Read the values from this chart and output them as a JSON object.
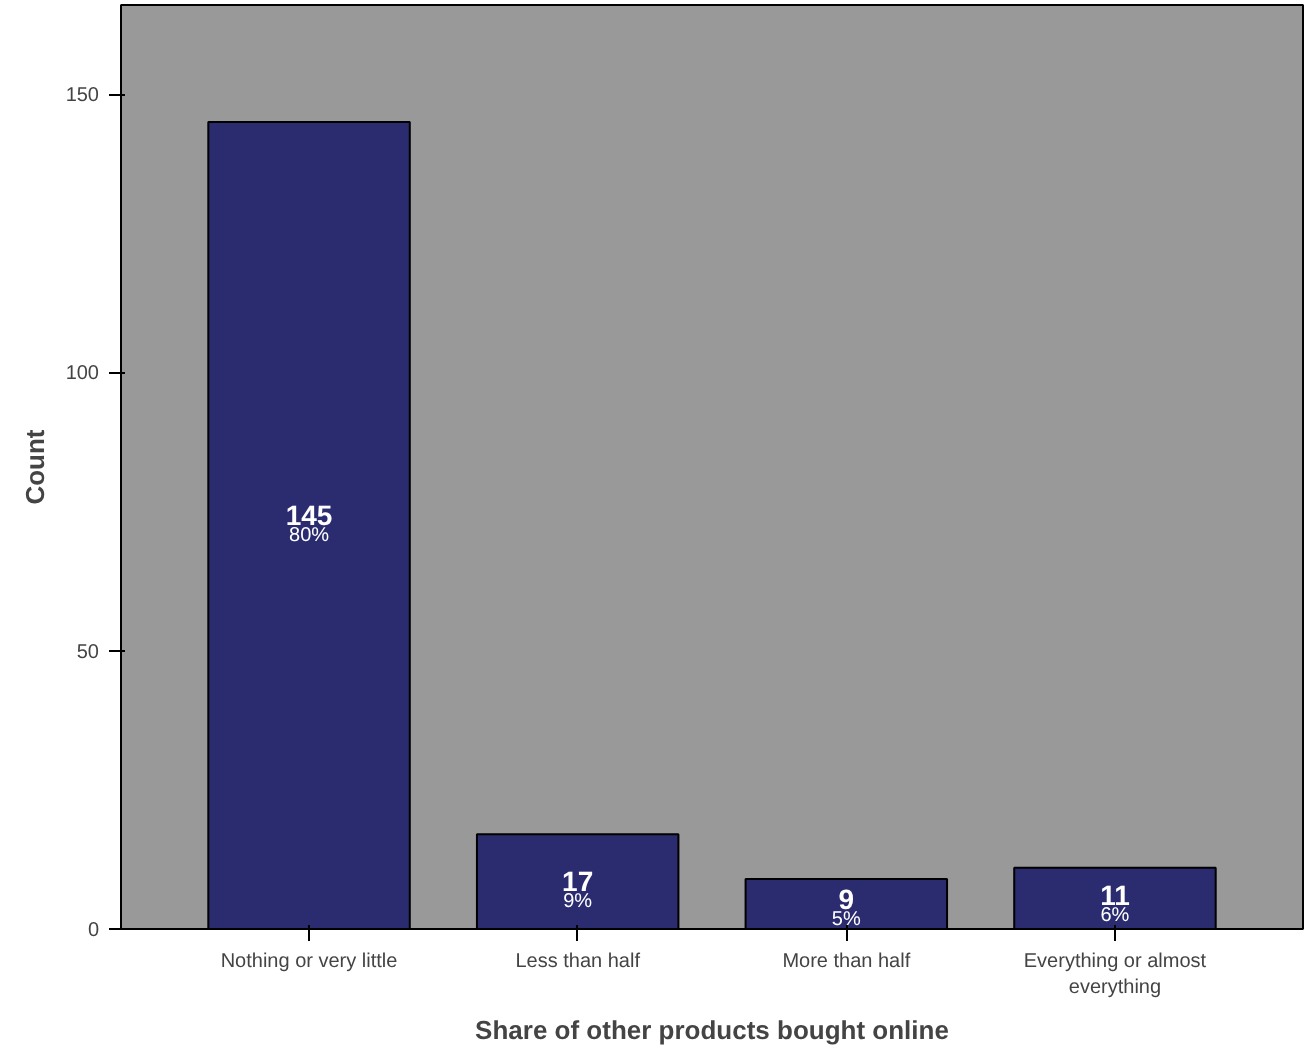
{
  "chart_data": {
    "type": "bar",
    "xlabel": "Share of other products bought online",
    "ylabel": "Count",
    "categories": [
      "Nothing or very little",
      "Less than half",
      "More than half",
      "Everything or almost\neverything"
    ],
    "values": [
      145,
      17,
      9,
      11
    ],
    "color": "#2b2b70",
    "ylim": [
      0,
      166
    ],
    "yticks": [
      0,
      50,
      100,
      150
    ],
    "grid": false,
    "data_labels": true,
    "annotations": [
      "80%",
      "9%",
      "5%",
      "6%"
    ]
  }
}
